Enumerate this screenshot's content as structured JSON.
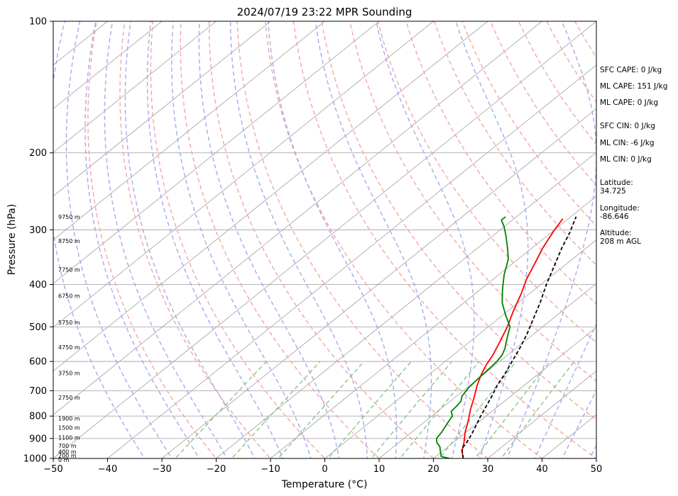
{
  "chart_data": {
    "type": "line",
    "title": "2024/07/19 23:22 MPR Sounding",
    "xlabel": "Temperature (°C)",
    "ylabel": "Pressure (hPa)",
    "xlim": [
      -50,
      50
    ],
    "ylim": [
      1000,
      100
    ],
    "y_scale": "log",
    "x_ticks": [
      -50,
      -40,
      -30,
      -20,
      -10,
      0,
      10,
      20,
      30,
      40,
      50
    ],
    "y_ticks": [
      1000,
      900,
      800,
      700,
      600,
      500,
      400,
      300,
      200,
      100
    ],
    "grid": true,
    "series": [
      {
        "color": "#ff0000",
        "points": [
          [
            25.5,
            1000
          ],
          [
            24.5,
            980
          ],
          [
            23.5,
            960
          ],
          [
            22,
            920
          ],
          [
            19.8,
            870
          ],
          [
            17.8,
            820
          ],
          [
            15.5,
            770
          ],
          [
            13.3,
            720
          ],
          [
            11.3,
            680
          ],
          [
            9.5,
            640
          ],
          [
            8.3,
            610
          ],
          [
            7.3,
            580
          ],
          [
            5.5,
            540
          ],
          [
            3.5,
            500
          ],
          [
            1,
            460
          ],
          [
            -1.5,
            420
          ],
          [
            -3.8,
            390
          ],
          [
            -5.8,
            360
          ],
          [
            -8,
            330
          ],
          [
            -10,
            300
          ],
          [
            -11,
            283
          ]
        ]
      },
      {
        "color": "#008000",
        "points": [
          [
            23,
            1000
          ],
          [
            21,
            990
          ],
          [
            19.5,
            960
          ],
          [
            18.5,
            940
          ],
          [
            17,
            920
          ],
          [
            16,
            900
          ],
          [
            15.5,
            870
          ],
          [
            15,
            850
          ],
          [
            14.5,
            830
          ],
          [
            13.8,
            800
          ],
          [
            12.5,
            780
          ],
          [
            12.3,
            760
          ],
          [
            12,
            740
          ],
          [
            11,
            720
          ],
          [
            10.3,
            690
          ],
          [
            10,
            660
          ],
          [
            9.8,
            630
          ],
          [
            9.5,
            600
          ],
          [
            9,
            580
          ],
          [
            8,
            560
          ],
          [
            6,
            530
          ],
          [
            4,
            500
          ],
          [
            0.5,
            470
          ],
          [
            -3,
            440
          ],
          [
            -6,
            410
          ],
          [
            -9,
            380
          ],
          [
            -11.8,
            350
          ],
          [
            -14.5,
            330
          ],
          [
            -17.5,
            310
          ],
          [
            -20,
            295
          ],
          [
            -22,
            285
          ],
          [
            -22,
            280
          ]
        ]
      },
      {
        "color": "#000000",
        "dash": "5,3",
        "points": [
          [
            25.5,
            1000
          ],
          [
            24,
            970
          ],
          [
            23,
            950
          ],
          [
            22.5,
            920
          ],
          [
            21.5,
            880
          ],
          [
            20.3,
            840
          ],
          [
            19,
            800
          ],
          [
            17.8,
            760
          ],
          [
            16.5,
            720
          ],
          [
            15,
            680
          ],
          [
            13.8,
            640
          ],
          [
            12.3,
            600
          ],
          [
            10.7,
            560
          ],
          [
            8.8,
            520
          ],
          [
            6.5,
            480
          ],
          [
            4,
            440
          ],
          [
            1,
            400
          ],
          [
            -2,
            360
          ],
          [
            -4.5,
            330
          ],
          [
            -6.5,
            305
          ],
          [
            -8.5,
            285
          ],
          [
            -9,
            280
          ]
        ]
      }
    ],
    "height_labels": [
      {
        "label": "9750 m",
        "pressure": 280
      },
      {
        "label": "8750 m",
        "pressure": 318
      },
      {
        "label": "7750 m",
        "pressure": 370
      },
      {
        "label": "6750 m",
        "pressure": 425
      },
      {
        "label": "5750 m",
        "pressure": 488
      },
      {
        "label": "4750 m",
        "pressure": 557
      },
      {
        "label": "3750 m",
        "pressure": 638
      },
      {
        "label": "2750 m",
        "pressure": 726
      },
      {
        "label": "1900 m",
        "pressure": 810
      },
      {
        "label": "1500 m",
        "pressure": 850
      },
      {
        "label": "1100 m",
        "pressure": 895
      },
      {
        "label": "700 m",
        "pressure": 935
      },
      {
        "label": "400 m",
        "pressure": 966
      },
      {
        "label": "200 m",
        "pressure": 986
      },
      {
        "label": "0 m",
        "pressure": 1008
      }
    ],
    "annotations": [
      "SFC CAPE: 0 J/kg",
      "ML CAPE: 151 J/kg",
      "ML CAPE: 0 J/kg",
      "SFC CIN: 0 J/kg",
      "ML CIN: -6 J/kg",
      "ML CIN: 0 J/kg",
      "Latitude:\n34.725",
      "Longitude:\n-86.646",
      "Altitude:\n208 m AGL"
    ],
    "colors": {
      "isotherm": "#aaaaaa",
      "isobar": "#aaaaaa",
      "dry_adiabat": "#f4a6a6",
      "moist_adiabat": "#a8a8f0",
      "mixing_ratio": "#88c488"
    }
  }
}
